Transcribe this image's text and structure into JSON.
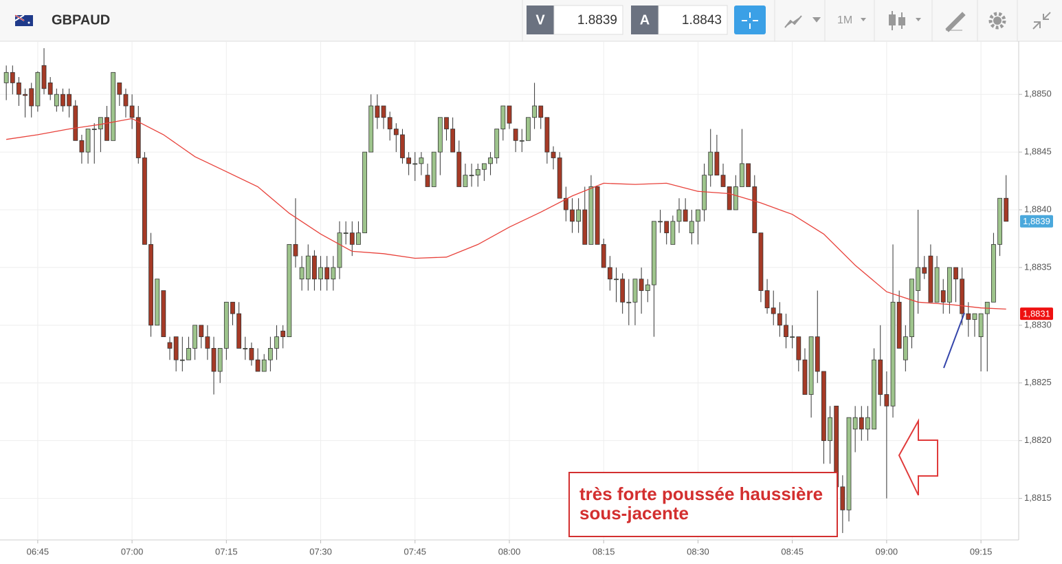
{
  "header": {
    "symbol": "GBPAUD",
    "bid_label": "V",
    "bid": 1.8839,
    "ask_label": "A",
    "ask": 1.8843,
    "timeframe": "1M"
  },
  "chart_data": {
    "type": "candlestick",
    "x": [
      "06:40",
      "06:41",
      "06:42",
      "06:43",
      "06:44",
      "06:45",
      "06:46",
      "06:47",
      "06:48",
      "06:49",
      "06:50",
      "06:51",
      "06:52",
      "06:53",
      "06:54",
      "06:55",
      "06:56",
      "06:57",
      "06:58",
      "06:59",
      "07:00",
      "07:01",
      "07:02",
      "07:03",
      "07:04",
      "07:05",
      "07:06",
      "07:07",
      "07:08",
      "07:09",
      "07:10",
      "07:11",
      "07:12",
      "07:13",
      "07:14",
      "07:15",
      "07:16",
      "07:17",
      "07:18",
      "07:19",
      "07:20",
      "07:21",
      "07:22",
      "07:23",
      "07:24",
      "07:25",
      "07:26",
      "07:27",
      "07:28",
      "07:29",
      "07:30",
      "07:31",
      "07:32",
      "07:33",
      "07:34",
      "07:35",
      "07:36",
      "07:37",
      "07:38",
      "07:39",
      "07:40",
      "07:41",
      "07:42",
      "07:43",
      "07:44",
      "07:45",
      "07:46",
      "07:47",
      "07:48",
      "07:49",
      "07:50",
      "07:51",
      "07:52",
      "07:53",
      "07:54",
      "07:55",
      "07:56",
      "07:57",
      "07:58",
      "07:59",
      "08:00",
      "08:01",
      "08:02",
      "08:03",
      "08:04",
      "08:05",
      "08:06",
      "08:07",
      "08:08",
      "08:09",
      "08:10",
      "08:11",
      "08:12",
      "08:13",
      "08:14",
      "08:15",
      "08:16",
      "08:17",
      "08:18",
      "08:19",
      "08:20",
      "08:21",
      "08:22",
      "08:23",
      "08:24",
      "08:25",
      "08:26",
      "08:27",
      "08:28",
      "08:29",
      "08:30",
      "08:31",
      "08:32",
      "08:33",
      "08:34",
      "08:35",
      "08:36",
      "08:37",
      "08:38",
      "08:39",
      "08:40",
      "08:41",
      "08:42",
      "08:43",
      "08:44",
      "08:45",
      "08:46",
      "08:47",
      "08:48",
      "08:49",
      "08:50",
      "08:51",
      "08:52",
      "08:53",
      "08:54",
      "08:55",
      "08:56",
      "08:57",
      "08:58",
      "08:59",
      "09:00",
      "09:01",
      "09:02",
      "09:03",
      "09:04",
      "09:05",
      "09:06",
      "09:07",
      "09:08",
      "09:09",
      "09:10",
      "09:11",
      "09:12",
      "09:13",
      "09:14",
      "09:15",
      "09:16",
      "09:17",
      "09:18",
      "09:19"
    ],
    "open": [
      1.8851,
      1.88519,
      1.8851,
      1.885,
      1.88505,
      1.8849,
      1.88525,
      1.8851,
      1.8849,
      1.885,
      1.885,
      1.8849,
      1.8846,
      1.8845,
      1.8847,
      1.8847,
      1.8848,
      1.8846,
      1.8851,
      1.885,
      1.8849,
      1.8848,
      1.88445,
      1.8837,
      1.883,
      1.8833,
      1.88285,
      1.8829,
      1.8827,
      1.8827,
      1.8828,
      1.883,
      1.8829,
      1.8828,
      1.8826,
      1.8828,
      1.8832,
      1.8831,
      1.8828,
      1.8828,
      1.8827,
      1.8826,
      1.8827,
      1.8828,
      1.88295,
      1.8829,
      1.8837,
      1.8834,
      1.8834,
      1.8836,
      1.8834,
      1.8835,
      1.8834,
      1.8835,
      1.8838,
      1.8838,
      1.8837,
      1.8838,
      1.8845,
      1.8849,
      1.8849,
      1.8848,
      1.8847,
      1.88465,
      1.88445,
      1.8844,
      1.8844,
      1.8843,
      1.8842,
      1.8845,
      1.8848,
      1.8847,
      1.8845,
      1.8842,
      1.8843,
      1.8843,
      1.88435,
      1.8844,
      1.88445,
      1.8847,
      1.8849,
      1.8847,
      1.8846,
      1.8846,
      1.8848,
      1.8849,
      1.8848,
      1.8845,
      1.88445,
      1.8841,
      1.884,
      1.8839,
      1.884,
      1.8837,
      1.8842,
      1.8837,
      1.8835,
      1.8834,
      1.8834,
      1.8832,
      1.8832,
      1.8834,
      1.8833,
      1.88335,
      1.8839,
      1.8839,
      1.8837,
      1.8839,
      1.884,
      1.8838,
      1.8839,
      1.884,
      1.8843,
      1.8845,
      1.8843,
      1.8842,
      1.884,
      1.8842,
      1.8844,
      1.8842,
      1.8838,
      1.8833,
      1.88315,
      1.8831,
      1.883,
      1.8829,
      1.8829,
      1.8827,
      1.8824,
      1.8829,
      1.8826,
      1.882,
      1.8823,
      1.8816,
      1.8814,
      1.8821,
      1.8822,
      1.8821,
      1.8821,
      1.8827,
      1.8824,
      1.8823,
      1.8832,
      1.8827,
      1.8829,
      1.8833,
      1.8835,
      1.8836,
      1.8832,
      1.8833,
      1.8832,
      1.8835,
      1.8834,
      1.8831,
      1.88305,
      1.8829,
      1.8831,
      1.8832,
      1.8837,
      1.8841
    ],
    "high": [
      1.88525,
      1.88525,
      1.88515,
      1.88505,
      1.8851,
      1.8852,
      1.8854,
      1.88515,
      1.88505,
      1.88505,
      1.88505,
      1.88495,
      1.88465,
      1.8847,
      1.88475,
      1.8848,
      1.8849,
      1.88519,
      1.8851,
      1.88505,
      1.885,
      1.8849,
      1.8845,
      1.8838,
      1.8834,
      1.8833,
      1.8829,
      1.8829,
      1.8829,
      1.8829,
      1.883,
      1.883,
      1.883,
      1.8829,
      1.8828,
      1.8832,
      1.8832,
      1.8832,
      1.8829,
      1.88285,
      1.8828,
      1.88275,
      1.8829,
      1.883,
      1.883,
      1.8837,
      1.8841,
      1.8836,
      1.8837,
      1.88365,
      1.8836,
      1.8836,
      1.8836,
      1.8839,
      1.8839,
      1.8839,
      1.8839,
      1.8845,
      1.885,
      1.885,
      1.8849,
      1.88485,
      1.88475,
      1.8847,
      1.8845,
      1.8845,
      1.8845,
      1.8844,
      1.8845,
      1.8848,
      1.8848,
      1.8848,
      1.8846,
      1.8844,
      1.8844,
      1.8844,
      1.8844,
      1.8845,
      1.8847,
      1.8849,
      1.8849,
      1.8847,
      1.8847,
      1.8848,
      1.8851,
      1.8849,
      1.8848,
      1.88455,
      1.8845,
      1.8842,
      1.8841,
      1.8841,
      1.8842,
      1.8843,
      1.8842,
      1.88375,
      1.8836,
      1.8835,
      1.88345,
      1.8834,
      1.8834,
      1.8835,
      1.8834,
      1.8839,
      1.884,
      1.8839,
      1.88395,
      1.8841,
      1.8841,
      1.884,
      1.884,
      1.8844,
      1.8847,
      1.88465,
      1.8844,
      1.8842,
      1.8843,
      1.8847,
      1.8844,
      1.8843,
      1.8838,
      1.8834,
      1.8833,
      1.8832,
      1.8831,
      1.883,
      1.8829,
      1.8828,
      1.8829,
      1.8833,
      1.8826,
      1.8823,
      1.8823,
      1.8817,
      1.8822,
      1.8823,
      1.8823,
      1.8823,
      1.8828,
      1.883,
      1.8826,
      1.8837,
      1.8833,
      1.883,
      1.8834,
      1.884,
      1.8836,
      1.8837,
      1.8836,
      1.8834,
      1.8835,
      1.8835,
      1.8835,
      1.8832,
      1.8831,
      1.8831,
      1.8832,
      1.8838,
      1.8841,
      1.8843
    ],
    "low": [
      1.88495,
      1.885,
      1.8849,
      1.8848,
      1.8848,
      1.88485,
      1.885,
      1.88495,
      1.88485,
      1.88485,
      1.8848,
      1.8846,
      1.8844,
      1.8844,
      1.8844,
      1.8845,
      1.8846,
      1.8846,
      1.8849,
      1.8848,
      1.8847,
      1.8844,
      1.8837,
      1.8829,
      1.883,
      1.8829,
      1.8827,
      1.8826,
      1.8826,
      1.8827,
      1.8827,
      1.8828,
      1.8827,
      1.8824,
      1.8825,
      1.8827,
      1.883,
      1.8828,
      1.8827,
      1.88265,
      1.8826,
      1.8826,
      1.8826,
      1.8827,
      1.8828,
      1.8829,
      1.8835,
      1.8833,
      1.8833,
      1.8833,
      1.8833,
      1.8833,
      1.8833,
      1.8834,
      1.8837,
      1.8836,
      1.8837,
      1.8838,
      1.8845,
      1.8847,
      1.8847,
      1.8846,
      1.8845,
      1.8844,
      1.8843,
      1.88425,
      1.8843,
      1.8842,
      1.8842,
      1.8843,
      1.8846,
      1.8845,
      1.8842,
      1.8842,
      1.8842,
      1.8842,
      1.88425,
      1.8843,
      1.8844,
      1.8846,
      1.8847,
      1.8845,
      1.8845,
      1.8846,
      1.8847,
      1.8847,
      1.8844,
      1.88435,
      1.8841,
      1.8839,
      1.8838,
      1.8838,
      1.8837,
      1.8837,
      1.8837,
      1.8835,
      1.8833,
      1.8832,
      1.8831,
      1.883,
      1.883,
      1.8831,
      1.8832,
      1.8829,
      1.8838,
      1.8837,
      1.8837,
      1.8838,
      1.8839,
      1.8837,
      1.8837,
      1.8839,
      1.8842,
      1.8843,
      1.8842,
      1.884,
      1.884,
      1.8842,
      1.8842,
      1.8838,
      1.8832,
      1.8831,
      1.883,
      1.8829,
      1.8828,
      1.8828,
      1.8826,
      1.8824,
      1.8822,
      1.8825,
      1.8818,
      1.8818,
      1.8814,
      1.8812,
      1.8813,
      1.8819,
      1.882,
      1.882,
      1.8821,
      1.8823,
      1.8815,
      1.8822,
      1.8828,
      1.8826,
      1.8828,
      1.8831,
      1.8834,
      1.8832,
      1.8832,
      1.8831,
      1.8831,
      1.8832,
      1.883,
      1.8829,
      1.8829,
      1.8826,
      1.8826,
      1.8832,
      1.8836,
      1.8839
    ],
    "close": [
      1.88519,
      1.8851,
      1.885,
      1.88499,
      1.8849,
      1.88519,
      1.88505,
      1.885,
      1.885,
      1.8849,
      1.8849,
      1.8846,
      1.8845,
      1.8847,
      1.8847,
      1.8848,
      1.8846,
      1.88519,
      1.885,
      1.8849,
      1.8848,
      1.88445,
      1.8837,
      1.883,
      1.8834,
      1.8829,
      1.8828,
      1.8827,
      1.8827,
      1.8828,
      1.883,
      1.8829,
      1.8828,
      1.8826,
      1.8828,
      1.8832,
      1.8831,
      1.8828,
      1.8828,
      1.8827,
      1.8826,
      1.8827,
      1.8828,
      1.8829,
      1.8829,
      1.8837,
      1.8836,
      1.8835,
      1.8836,
      1.8834,
      1.8835,
      1.8834,
      1.8835,
      1.8838,
      1.8838,
      1.8837,
      1.8838,
      1.8845,
      1.8849,
      1.8848,
      1.8848,
      1.8847,
      1.88465,
      1.88445,
      1.8844,
      1.8844,
      1.88445,
      1.8842,
      1.8845,
      1.8848,
      1.8847,
      1.8845,
      1.8842,
      1.8843,
      1.8843,
      1.88435,
      1.8844,
      1.88445,
      1.8847,
      1.8849,
      1.88475,
      1.8846,
      1.8846,
      1.8848,
      1.8849,
      1.8848,
      1.8845,
      1.88445,
      1.8841,
      1.884,
      1.8839,
      1.884,
      1.8837,
      1.8842,
      1.8837,
      1.8835,
      1.8834,
      1.8834,
      1.8832,
      1.8832,
      1.8834,
      1.8833,
      1.88335,
      1.8839,
      1.8839,
      1.8838,
      1.8839,
      1.884,
      1.8839,
      1.8839,
      1.884,
      1.8843,
      1.8845,
      1.8843,
      1.8842,
      1.884,
      1.8842,
      1.8844,
      1.8842,
      1.8838,
      1.8833,
      1.88315,
      1.8831,
      1.883,
      1.8829,
      1.8829,
      1.8827,
      1.8824,
      1.8829,
      1.8826,
      1.882,
      1.8822,
      1.8816,
      1.8814,
      1.8822,
      1.8822,
      1.8821,
      1.8822,
      1.8827,
      1.8824,
      1.8823,
      1.8832,
      1.8828,
      1.8829,
      1.8834,
      1.8835,
      1.88345,
      1.8832,
      1.8835,
      1.8832,
      1.8835,
      1.8834,
      1.8831,
      1.88305,
      1.8831,
      1.8831,
      1.8832,
      1.8837,
      1.8841,
      1.8839
    ],
    "up_color": "#9ec48c",
    "down_color": "#a53a26",
    "ma": {
      "color": "#e8413a",
      "x": [
        "06:40",
        "06:45",
        "06:50",
        "06:55",
        "07:00",
        "07:05",
        "07:10",
        "07:15",
        "07:20",
        "07:25",
        "07:30",
        "07:35",
        "07:40",
        "07:45",
        "07:50",
        "07:55",
        "08:00",
        "08:05",
        "08:10",
        "08:15",
        "08:20",
        "08:25",
        "08:30",
        "08:35",
        "08:40",
        "08:45",
        "08:50",
        "08:55",
        "09:00",
        "09:05",
        "09:10",
        "09:15",
        "09:19"
      ],
      "values": [
        1.88461,
        1.88465,
        1.8847,
        1.88474,
        1.88479,
        1.88465,
        1.88446,
        1.88433,
        1.8842,
        1.88397,
        1.88379,
        1.88364,
        1.88362,
        1.88358,
        1.88359,
        1.8837,
        1.88385,
        1.88398,
        1.88412,
        1.88423,
        1.88422,
        1.88423,
        1.88416,
        1.88414,
        1.88406,
        1.88396,
        1.88379,
        1.88352,
        1.88329,
        1.8832,
        1.88318,
        1.88315,
        1.88314
      ]
    },
    "xlim": [
      "06:39",
      "09:21"
    ],
    "xticks": [
      "06:45",
      "07:00",
      "07:15",
      "07:30",
      "07:45",
      "08:00",
      "08:15",
      "08:30",
      "08:45",
      "09:00",
      "09:15"
    ],
    "ylim": [
      1.88114,
      1.88546
    ],
    "yticks": [
      {
        "value": 1.8815,
        "label": "1,8815"
      },
      {
        "value": 1.882,
        "label": "1,8820"
      },
      {
        "value": 1.8825,
        "label": "1,8825"
      },
      {
        "value": 1.883,
        "label": "1,8830"
      },
      {
        "value": 1.8835,
        "label": "1,8835"
      },
      {
        "value": 1.884,
        "label": "1,8840"
      },
      {
        "value": 1.8845,
        "label": "1,8845"
      },
      {
        "value": 1.885,
        "label": "1,8850"
      }
    ],
    "grid": true,
    "price_labels": [
      {
        "value": 1.8839,
        "label": "1,8839",
        "color": "#4aa8dc"
      },
      {
        "value": 1.8831,
        "label": "1,8831",
        "color": "#ee1111"
      }
    ],
    "annotation": [
      "très forte poussée haussière",
      "sous-jacente"
    ]
  }
}
